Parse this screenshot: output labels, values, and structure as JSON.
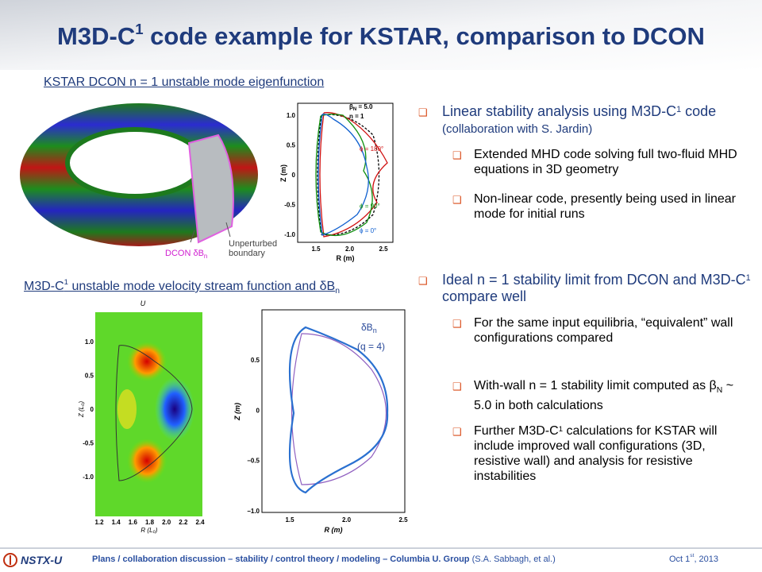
{
  "header": {
    "title": [
      "M3D-C",
      "1",
      " code example for KSTAR, comparison to DCON"
    ]
  },
  "figure1": {
    "caption": "KSTAR DCON n = 1 unstable mode eigenfunction",
    "torus_labels": {
      "dcon": [
        "DCON δB",
        "n"
      ],
      "boundary": [
        "Unperturbed",
        "boundary"
      ]
    },
    "plot": {
      "ylabel": "Z (m)",
      "xlabel": "R (m)",
      "yticks": [
        "1.0",
        "0.5",
        "0",
        "-0.5",
        "-1.0"
      ],
      "xticks": [
        "1.5",
        "2.0",
        "2.5"
      ],
      "legend": {
        "beta": [
          "β",
          "N",
          " = 5.0"
        ],
        "n": "n = 1",
        "phi180": "ϕ = 180°",
        "phi90": "ϕ = 90°",
        "phi0": "ϕ = 0°"
      }
    }
  },
  "figure2": {
    "caption": [
      "M3D-C",
      "1",
      " unstable mode velocity stream function and δB",
      "n"
    ],
    "contour": {
      "title": "U",
      "ylabel": "Z (L₀)",
      "xlabel": "R (L₀)",
      "yticks": [
        "1.0",
        "0.5",
        "0",
        "-0.5",
        "-1.0"
      ],
      "xticks": [
        "1.2",
        "1.4",
        "1.6",
        "1.8",
        "2.0",
        "2.2",
        "2.4"
      ]
    },
    "plot": {
      "ylabel": "Z (m)",
      "xlabel": "R (m)",
      "yticks": [
        "0.5",
        "0",
        "−0.5",
        "−1.0"
      ],
      "xticks": [
        "1.5",
        "2.0",
        "2.5"
      ],
      "label": [
        "δB",
        "n"
      ],
      "label_q": "(q = 4)"
    }
  },
  "bullets": [
    {
      "text": [
        "Linear stability analysis using M3D-C",
        "1",
        " code "
      ],
      "note": "(collaboration with S. Jardin)",
      "sub": [
        "Extended MHD code solving full two-fluid MHD equations in 3D geometry",
        "Non-linear code, presently being used in linear mode for initial runs"
      ]
    },
    {
      "text": [
        "Ideal n = 1 stability limit from DCON and M3D-C",
        "1",
        " compare well"
      ],
      "sub": [
        "For the same input equilibria, “equivalent” wall configurations compared",
        [
          "With-wall n = 1 stability limit computed as β",
          "N",
          " ~ 5.0 in both calculations"
        ],
        [
          "Further M3D-C",
          "1",
          " calculations for KSTAR will include improved wall configurations (3D, resistive wall) and analysis for resistive instabilities"
        ]
      ]
    }
  ],
  "footer": {
    "logo": "NSTX-U",
    "text": "Plans / collaboration discussion – stability / control theory / modeling – Columbia U. Group",
    "authors": "(S.A. Sabbagh, et al.)",
    "date": [
      "Oct 1",
      "st",
      ", 2013"
    ]
  }
}
